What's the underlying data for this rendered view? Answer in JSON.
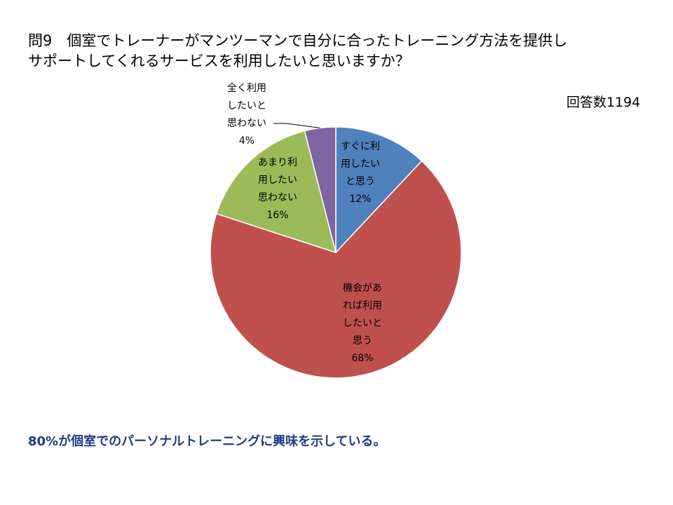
{
  "question": {
    "line1": "問9　個室でトレーナーがマンツーマンで自分に合ったトレーニング方法を提供し",
    "line2": "サポートしてくれるサービスを利用したいと思いますか？"
  },
  "response_count": "回答数1194",
  "conclusion": "80%が個室でのパーソナルトレーニングに興味を示している。",
  "chart_data": {
    "type": "pie",
    "title": "",
    "slices": [
      {
        "label_lines": [
          "すぐに利",
          "用したい",
          "と思う"
        ],
        "percent_label": "12%",
        "value": 12,
        "color": "#4f81bd"
      },
      {
        "label_lines": [
          "機会があ",
          "れば利用",
          "したいと",
          "思う"
        ],
        "percent_label": "68%",
        "value": 68,
        "color": "#c0504d"
      },
      {
        "label_lines": [
          "あまり利",
          "用したい",
          "思わない"
        ],
        "percent_label": "16%",
        "value": 16,
        "color": "#9bbb59"
      },
      {
        "label_lines": [
          "全く利用",
          "したいと",
          "思わない"
        ],
        "percent_label": "4%",
        "value": 4,
        "color": "#8064a2"
      }
    ]
  }
}
